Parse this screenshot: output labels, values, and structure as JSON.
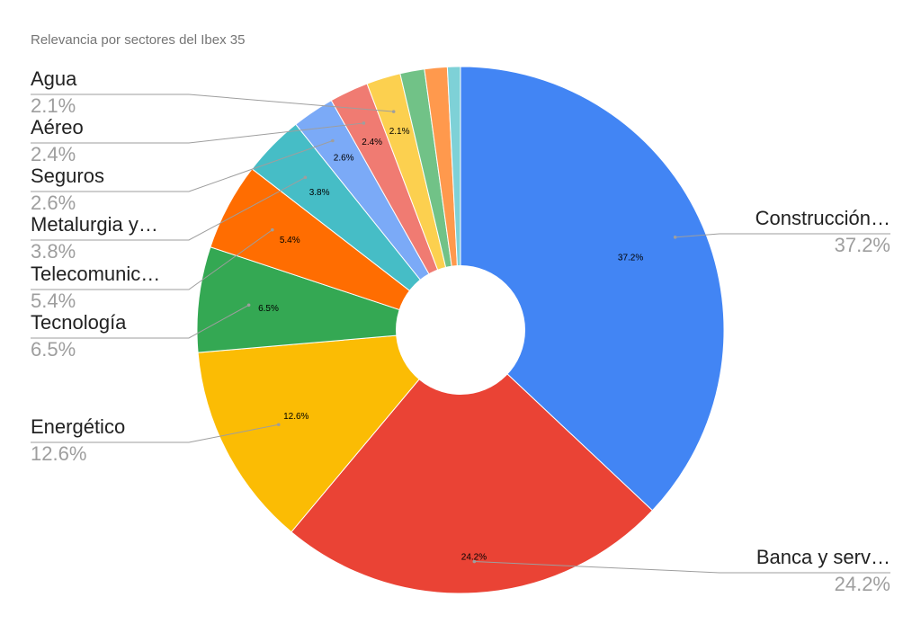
{
  "chart_data": {
    "type": "pie",
    "donut": true,
    "title": "Relevancia por sectores del Ibex 35",
    "slices": [
      {
        "label": "Construcción…",
        "value": 37.2,
        "display": "37.2%",
        "color": "#4285F4"
      },
      {
        "label": "Banca y serv…",
        "value": 24.2,
        "display": "24.2%",
        "color": "#EA4335"
      },
      {
        "label": "Energético",
        "value": 12.6,
        "display": "12.6%",
        "color": "#FBBC04"
      },
      {
        "label": "Tecnología",
        "value": 6.5,
        "display": "6.5%",
        "color": "#34A853"
      },
      {
        "label": "Telecomunic…",
        "value": 5.4,
        "display": "5.4%",
        "color": "#FF6D01"
      },
      {
        "label": "Metalurgia y…",
        "value": 3.8,
        "display": "3.8%",
        "color": "#46BDC6"
      },
      {
        "label": "Seguros",
        "value": 2.6,
        "display": "2.6%",
        "color": "#7BAAF7"
      },
      {
        "label": "Aéreo",
        "value": 2.4,
        "display": "2.4%",
        "color": "#F07B72"
      },
      {
        "label": "Agua",
        "value": 2.1,
        "display": "2.1%",
        "color": "#FCD04F"
      },
      {
        "label": "",
        "value": 1.5,
        "display": "",
        "color": "#71C287"
      },
      {
        "label": "",
        "value": 1.4,
        "display": "",
        "color": "#FF994D"
      },
      {
        "label": "",
        "value": 0.8,
        "display": "",
        "color": "#7ED1D7"
      }
    ],
    "legend": "leader-labels"
  }
}
